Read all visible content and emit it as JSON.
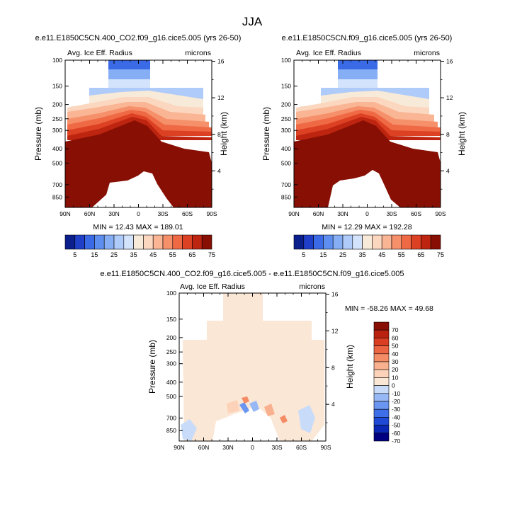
{
  "figure": {
    "title": "JJA"
  },
  "chart_data": [
    {
      "type": "heatmap",
      "title": "e.e11.E1850C5CN.400_CO2.f09_g16.cice5.005 (yrs 26-50)",
      "left_label": "Avg. Ice Eff. Radius",
      "right_label": "microns",
      "ylabel": "Pressure (mb)",
      "ylabel_right": "Height (km)",
      "xlabel": "",
      "x_ticks": [
        "90N",
        "60N",
        "30N",
        "0",
        "30S",
        "60S",
        "90S"
      ],
      "x_values": [
        90,
        60,
        30,
        0,
        -30,
        -60,
        -90
      ],
      "y_ticks": [
        "100",
        "150",
        "200",
        "250",
        "300",
        "400",
        "500",
        "700",
        "850"
      ],
      "y_values": [
        100,
        150,
        200,
        250,
        300,
        400,
        500,
        700,
        850
      ],
      "y_right_ticks": [
        "16",
        "12",
        "8",
        "4"
      ],
      "y_right_values": [
        16,
        12,
        8,
        4
      ],
      "ylim": [
        100,
        1000
      ],
      "xlim": [
        90,
        -90
      ],
      "min": 12.43,
      "max": 189.01,
      "stats_text": "MIN =  12.43   MAX = 189.01",
      "levels": [
        5,
        10,
        15,
        20,
        25,
        30,
        35,
        40,
        45,
        50,
        55,
        60,
        65,
        70,
        75
      ],
      "colorbar_labels": [
        "5",
        "15",
        "25",
        "35",
        "45",
        "55",
        "65",
        "75"
      ]
    },
    {
      "type": "heatmap",
      "title": "e.e11.E1850C5CN.f09_g16.cice5.005 (yrs 26-50)",
      "left_label": "Avg. Ice Eff. Radius",
      "right_label": "microns",
      "ylabel": "Pressure (mb)",
      "ylabel_right": "Height (km)",
      "xlabel": "",
      "x_ticks": [
        "90N",
        "60N",
        "30N",
        "0",
        "30S",
        "60S",
        "90S"
      ],
      "x_values": [
        90,
        60,
        30,
        0,
        -30,
        -60,
        -90
      ],
      "y_ticks": [
        "100",
        "150",
        "200",
        "250",
        "300",
        "400",
        "500",
        "700",
        "850"
      ],
      "y_values": [
        100,
        150,
        200,
        250,
        300,
        400,
        500,
        700,
        850
      ],
      "y_right_ticks": [
        "16",
        "12",
        "8",
        "4"
      ],
      "y_right_values": [
        16,
        12,
        8,
        4
      ],
      "ylim": [
        100,
        1000
      ],
      "xlim": [
        90,
        -90
      ],
      "min": 12.29,
      "max": 192.28,
      "stats_text": "MIN =  12.29   MAX = 192.28",
      "levels": [
        5,
        10,
        15,
        20,
        25,
        30,
        35,
        40,
        45,
        50,
        55,
        60,
        65,
        70,
        75
      ],
      "colorbar_labels": [
        "5",
        "15",
        "25",
        "35",
        "45",
        "55",
        "65",
        "75"
      ]
    },
    {
      "type": "heatmap",
      "title": "e.e11.E1850C5CN.400_CO2.f09_g16.cice5.005 - e.e11.E1850C5CN.f09_g16.cice5.005",
      "left_label": "Avg. Ice Eff. Radius",
      "right_label": "microns",
      "ylabel": "Pressure (mb)",
      "ylabel_right": "Height (km)",
      "xlabel": "",
      "x_ticks": [
        "90N",
        "60N",
        "30N",
        "0",
        "30S",
        "60S",
        "90S"
      ],
      "x_values": [
        90,
        60,
        30,
        0,
        -30,
        -60,
        -90
      ],
      "y_ticks": [
        "100",
        "150",
        "200",
        "250",
        "300",
        "400",
        "500",
        "700",
        "850"
      ],
      "y_values": [
        100,
        150,
        200,
        250,
        300,
        400,
        500,
        700,
        850
      ],
      "y_right_ticks": [
        "16",
        "12",
        "8",
        "4"
      ],
      "y_right_values": [
        16,
        12,
        8,
        4
      ],
      "ylim": [
        100,
        1000
      ],
      "xlim": [
        90,
        -90
      ],
      "min": -58.26,
      "max": 49.68,
      "stats_text": "MIN = -58.26   MAX =  49.68",
      "levels": [
        -70,
        -60,
        -50,
        -40,
        -30,
        -20,
        -10,
        0,
        10,
        20,
        30,
        40,
        50,
        60,
        70
      ],
      "colorbar_labels": [
        "70",
        "60",
        "50",
        "40",
        "30",
        "20",
        "10",
        "0",
        "-10",
        "-20",
        "-30",
        "-40",
        "-50",
        "-60",
        "-70"
      ]
    }
  ],
  "colors": {
    "scale": [
      "#0a1e8c",
      "#1f3fc8",
      "#3a6ae6",
      "#5d8ef0",
      "#86aef5",
      "#aecbf9",
      "#d3e3fb",
      "#f8ead8",
      "#fcd7bf",
      "#f9b594",
      "#f5906b",
      "#ef6945",
      "#dd4124",
      "#bd2510",
      "#870f04"
    ],
    "diff_scale": [
      "#000080",
      "#0a28b4",
      "#1f4ad6",
      "#3f6fe8",
      "#6a95f0",
      "#98b8f5",
      "#c8dcf9",
      "#fbe7d6",
      "#fcd2b9",
      "#f9b08e",
      "#f48c66",
      "#ec6543",
      "#da3e23",
      "#b9220f",
      "#870f04"
    ]
  }
}
